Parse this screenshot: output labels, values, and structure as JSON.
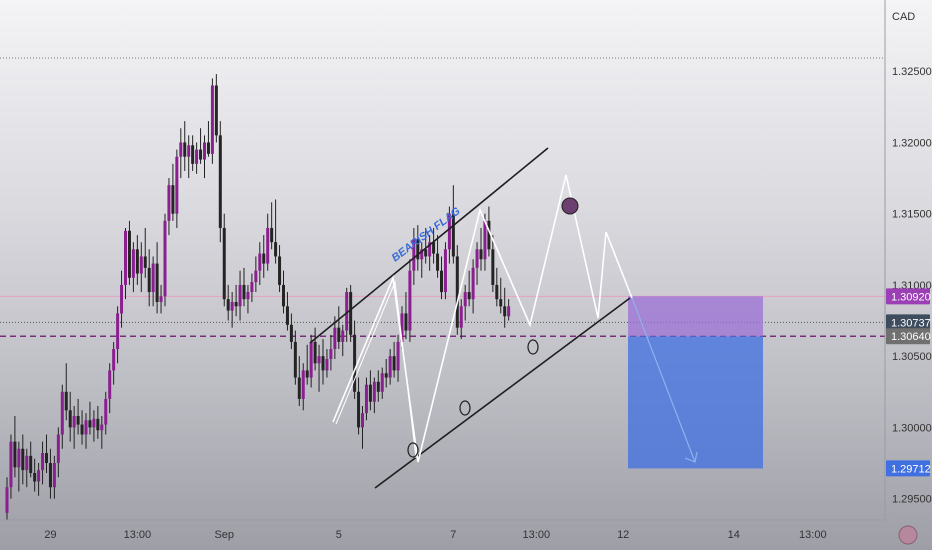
{
  "chart_data": {
    "type": "candlestick",
    "currency": "CAD",
    "y_ticks": [
      "1.32500",
      "1.32000",
      "1.31500",
      "1.31000",
      "1.30500",
      "1.30000",
      "1.29500"
    ],
    "y_tick_values": [
      1.325,
      1.32,
      1.315,
      1.31,
      1.305,
      1.3,
      1.295
    ],
    "ylim": [
      1.2935,
      1.33
    ],
    "x_ticks": [
      "29",
      "13:00",
      "Sep",
      "5",
      "7",
      "13:00",
      "12",
      "14",
      "13:00"
    ],
    "x_tick_index": [
      11,
      33,
      55,
      84,
      113,
      134,
      156,
      184,
      204
    ],
    "x_count": 230,
    "price_labels": [
      {
        "text": "1.30920",
        "value": 1.3092,
        "color": "#9b3fb5"
      },
      {
        "text": "1.30737",
        "value": 1.30737,
        "color": "#3d4d5e"
      },
      {
        "text": "1.30640",
        "value": 1.3064,
        "color": "#707070"
      },
      {
        "text": "1.29712",
        "value": 1.29712,
        "color": "#3f6fe0"
      }
    ],
    "annotation": "BEARISH FLAG",
    "candles": [
      [
        1.294,
        1.2965,
        1.2935,
        1.2958
      ],
      [
        1.2958,
        1.2995,
        1.295,
        1.299
      ],
      [
        1.299,
        1.3008,
        1.2965,
        1.2972
      ],
      [
        1.2972,
        1.299,
        1.2955,
        1.2985
      ],
      [
        1.2985,
        1.2995,
        1.296,
        1.297
      ],
      [
        1.297,
        1.2985,
        1.2958,
        1.298
      ],
      [
        1.298,
        1.299,
        1.2965,
        1.2968
      ],
      [
        1.2968,
        1.2978,
        1.2955,
        1.2962
      ],
      [
        1.2962,
        1.2975,
        1.2952,
        1.297
      ],
      [
        1.297,
        1.299,
        1.296,
        1.2982
      ],
      [
        1.2982,
        1.2995,
        1.2968,
        1.2975
      ],
      [
        1.2975,
        1.2985,
        1.295,
        1.2958
      ],
      [
        1.2958,
        1.298,
        1.295,
        1.2975
      ],
      [
        1.2975,
        1.3,
        1.2965,
        1.2995
      ],
      [
        1.2995,
        1.303,
        1.2985,
        1.3025
      ],
      [
        1.3025,
        1.3045,
        1.3005,
        1.3012
      ],
      [
        1.3012,
        1.3025,
        1.299,
        1.3
      ],
      [
        1.3,
        1.3015,
        1.2985,
        1.3008
      ],
      [
        1.3008,
        1.302,
        1.2995,
        1.3002
      ],
      [
        1.3002,
        1.3012,
        1.2988,
        1.2995
      ],
      [
        1.2995,
        1.301,
        1.2985,
        1.3005
      ],
      [
        1.3005,
        1.3018,
        1.2995,
        1.3
      ],
      [
        1.3,
        1.3012,
        1.299,
        1.3006
      ],
      [
        1.3006,
        1.3015,
        1.2992,
        1.2998
      ],
      [
        1.2998,
        1.3008,
        1.2985,
        1.3002
      ],
      [
        1.3002,
        1.3025,
        1.2995,
        1.302
      ],
      [
        1.302,
        1.3045,
        1.301,
        1.304
      ],
      [
        1.304,
        1.306,
        1.303,
        1.3055
      ],
      [
        1.3055,
        1.3085,
        1.3045,
        1.308
      ],
      [
        1.308,
        1.311,
        1.307,
        1.31
      ],
      [
        1.31,
        1.314,
        1.309,
        1.3138
      ],
      [
        1.3138,
        1.3145,
        1.31,
        1.3105
      ],
      [
        1.3105,
        1.313,
        1.3095,
        1.3125
      ],
      [
        1.3125,
        1.3135,
        1.31,
        1.3108
      ],
      [
        1.3108,
        1.313,
        1.3095,
        1.312
      ],
      [
        1.312,
        1.314,
        1.3105,
        1.3112
      ],
      [
        1.3112,
        1.3125,
        1.3085,
        1.3095
      ],
      [
        1.3095,
        1.312,
        1.3085,
        1.3115
      ],
      [
        1.3115,
        1.313,
        1.308,
        1.3088
      ],
      [
        1.3088,
        1.31,
        1.308,
        1.3092
      ],
      [
        1.3092,
        1.315,
        1.3085,
        1.3145
      ],
      [
        1.3145,
        1.3175,
        1.3135,
        1.317
      ],
      [
        1.317,
        1.3185,
        1.3145,
        1.315
      ],
      [
        1.315,
        1.3195,
        1.314,
        1.319
      ],
      [
        1.319,
        1.321,
        1.3175,
        1.32
      ],
      [
        1.32,
        1.3215,
        1.318,
        1.319
      ],
      [
        1.319,
        1.3205,
        1.3175,
        1.3198
      ],
      [
        1.3198,
        1.3205,
        1.318,
        1.3185
      ],
      [
        1.3185,
        1.32,
        1.3178,
        1.3195
      ],
      [
        1.3195,
        1.321,
        1.3185,
        1.3188
      ],
      [
        1.3188,
        1.3205,
        1.3175,
        1.32
      ],
      [
        1.32,
        1.3215,
        1.319,
        1.3192
      ],
      [
        1.3192,
        1.3245,
        1.3185,
        1.324
      ],
      [
        1.324,
        1.3248,
        1.32,
        1.3205
      ],
      [
        1.3205,
        1.3215,
        1.313,
        1.314
      ],
      [
        1.314,
        1.315,
        1.3085,
        1.309
      ],
      [
        1.309,
        1.31,
        1.3075,
        1.3082
      ],
      [
        1.3082,
        1.3095,
        1.307,
        1.3088
      ],
      [
        1.3088,
        1.31,
        1.3078,
        1.3085
      ],
      [
        1.3085,
        1.311,
        1.3075,
        1.31
      ],
      [
        1.31,
        1.3112,
        1.3085,
        1.309
      ],
      [
        1.309,
        1.31,
        1.308,
        1.3095
      ],
      [
        1.3095,
        1.3108,
        1.3088,
        1.3102
      ],
      [
        1.3102,
        1.312,
        1.3095,
        1.311
      ],
      [
        1.311,
        1.313,
        1.31,
        1.3122
      ],
      [
        1.3122,
        1.3135,
        1.3105,
        1.3115
      ],
      [
        1.3115,
        1.315,
        1.311,
        1.314
      ],
      [
        1.314,
        1.3158,
        1.3125,
        1.313
      ],
      [
        1.313,
        1.316,
        1.3115,
        1.312
      ],
      [
        1.312,
        1.3128,
        1.3095,
        1.31
      ],
      [
        1.31,
        1.311,
        1.308,
        1.3085
      ],
      [
        1.3085,
        1.3095,
        1.3068,
        1.3072
      ],
      [
        1.3072,
        1.308,
        1.3055,
        1.306
      ],
      [
        1.306,
        1.3068,
        1.303,
        1.3035
      ],
      [
        1.3035,
        1.305,
        1.3015,
        1.302
      ],
      [
        1.302,
        1.3045,
        1.3012,
        1.304
      ],
      [
        1.304,
        1.3058,
        1.303,
        1.3035
      ],
      [
        1.3035,
        1.3065,
        1.3028,
        1.306
      ],
      [
        1.306,
        1.307,
        1.304,
        1.3045
      ],
      [
        1.3045,
        1.3058,
        1.3025,
        1.305
      ],
      [
        1.305,
        1.3062,
        1.303,
        1.304
      ],
      [
        1.304,
        1.3055,
        1.3035,
        1.3048
      ],
      [
        1.3048,
        1.3065,
        1.304,
        1.3055
      ],
      [
        1.3055,
        1.3078,
        1.3048,
        1.307
      ],
      [
        1.307,
        1.3085,
        1.3055,
        1.306
      ],
      [
        1.306,
        1.3072,
        1.305,
        1.3068
      ],
      [
        1.3068,
        1.3098,
        1.306,
        1.3095
      ],
      [
        1.3095,
        1.31,
        1.306,
        1.3065
      ],
      [
        1.3065,
        1.3075,
        1.302,
        1.3025
      ],
      [
        1.3025,
        1.3035,
        1.2995,
        1.3
      ],
      [
        1.3,
        1.3015,
        1.2985,
        1.301
      ],
      [
        1.301,
        1.3035,
        1.3005,
        1.303
      ],
      [
        1.303,
        1.304,
        1.3012,
        1.3018
      ],
      [
        1.3018,
        1.3035,
        1.301,
        1.3032
      ],
      [
        1.3032,
        1.304,
        1.3018,
        1.3025
      ],
      [
        1.3025,
        1.3042,
        1.302,
        1.3038
      ],
      [
        1.3038,
        1.3048,
        1.3028,
        1.3035
      ],
      [
        1.3035,
        1.3055,
        1.303,
        1.305
      ],
      [
        1.305,
        1.306,
        1.3035,
        1.304
      ],
      [
        1.304,
        1.3065,
        1.3032,
        1.306
      ],
      [
        1.306,
        1.3085,
        1.3055,
        1.308
      ],
      [
        1.308,
        1.3095,
        1.3062,
        1.3068
      ],
      [
        1.3068,
        1.3118,
        1.306,
        1.311
      ],
      [
        1.311,
        1.314,
        1.31,
        1.3132
      ],
      [
        1.3132,
        1.3142,
        1.311,
        1.3118
      ],
      [
        1.3118,
        1.313,
        1.3105,
        1.3125
      ],
      [
        1.3125,
        1.314,
        1.3115,
        1.312
      ],
      [
        1.312,
        1.3135,
        1.311,
        1.313
      ],
      [
        1.313,
        1.314,
        1.3115,
        1.3122
      ],
      [
        1.3122,
        1.3135,
        1.3105,
        1.311
      ],
      [
        1.311,
        1.312,
        1.309,
        1.3095
      ],
      [
        1.3095,
        1.313,
        1.309,
        1.3125
      ],
      [
        1.3125,
        1.3155,
        1.3115,
        1.315
      ],
      [
        1.315,
        1.317,
        1.3115,
        1.312
      ],
      [
        1.312,
        1.3128,
        1.3065,
        1.307
      ],
      [
        1.307,
        1.309,
        1.3062,
        1.3085
      ],
      [
        1.3085,
        1.31,
        1.3075,
        1.3095
      ],
      [
        1.3095,
        1.311,
        1.3085,
        1.309
      ],
      [
        1.309,
        1.3118,
        1.308,
        1.3112
      ],
      [
        1.3112,
        1.313,
        1.31,
        1.3125
      ],
      [
        1.3125,
        1.314,
        1.311,
        1.3118
      ],
      [
        1.3118,
        1.315,
        1.311,
        1.3145
      ],
      [
        1.3145,
        1.3155,
        1.312,
        1.3125
      ],
      [
        1.3125,
        1.3135,
        1.3095,
        1.31
      ],
      [
        1.31,
        1.3112,
        1.3085,
        1.309
      ],
      [
        1.309,
        1.3105,
        1.308,
        1.3085
      ],
      [
        1.3085,
        1.3098,
        1.307,
        1.3078
      ],
      [
        1.3078,
        1.309,
        1.3075,
        1.3085
      ]
    ]
  }
}
